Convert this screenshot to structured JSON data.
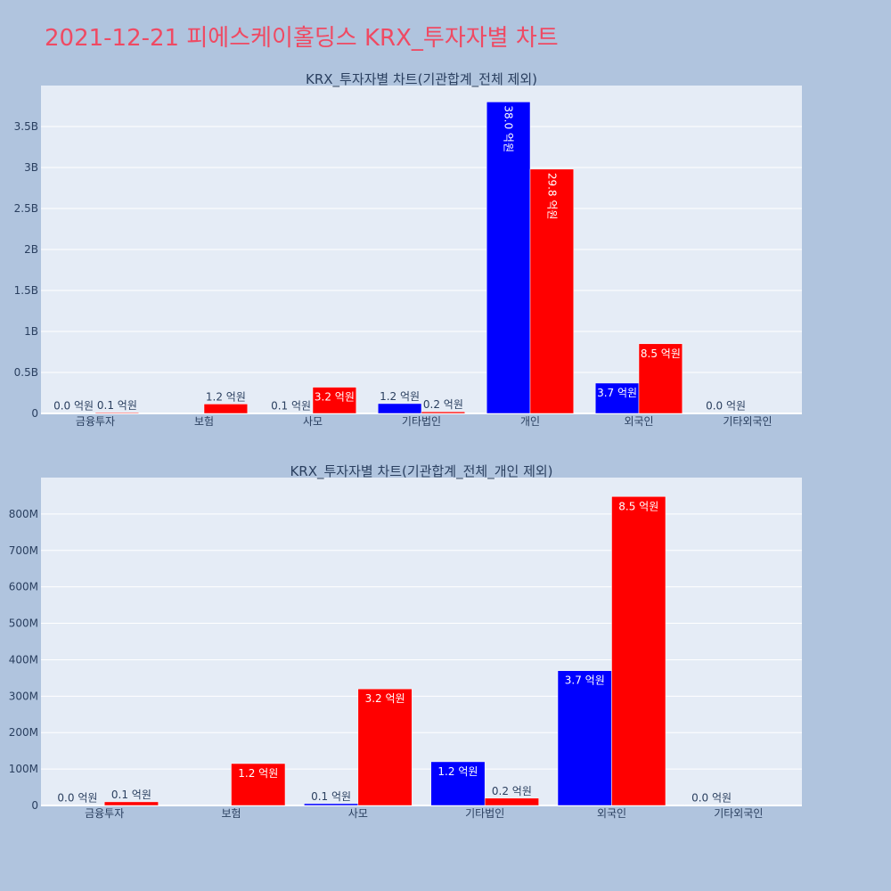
{
  "title": "2021-12-21 피에스케이홀딩스 KRX_투자자별 차트",
  "colors": {
    "buy": "#0000ff",
    "sell": "#ff0000",
    "plot_bg": "#e5ecf6",
    "page_bg": "#b0c4de",
    "title": "#ef4a63",
    "label_dark": "#2a3f5f",
    "label_light": "#ffffff"
  },
  "chart_data": [
    {
      "type": "bar",
      "title": "KRX_투자자별 차트(기관합계_전체 제외)",
      "categories": [
        "금융투자",
        "보험",
        "사모",
        "기타법인",
        "개인",
        "외국인",
        "기타외국인"
      ],
      "ylim": [
        0,
        4000000000
      ],
      "yticks": [
        {
          "value": 0,
          "label": "0"
        },
        {
          "value": 500000000,
          "label": "0.5B"
        },
        {
          "value": 1000000000,
          "label": "1B"
        },
        {
          "value": 1500000000,
          "label": "1.5B"
        },
        {
          "value": 2000000000,
          "label": "2B"
        },
        {
          "value": 2500000000,
          "label": "2.5B"
        },
        {
          "value": 3000000000,
          "label": "3B"
        },
        {
          "value": 3500000000,
          "label": "3.5B"
        }
      ],
      "grid": true,
      "series": [
        {
          "color": "#0000ff",
          "values": [
            1000000,
            null,
            5000000,
            120000000,
            3800000000,
            370000000,
            1000000
          ],
          "labels": [
            "0.0 억원",
            "",
            "0.1 억원",
            "1.2 억원",
            "38.0 억원",
            "3.7 억원",
            "0.0 억원"
          ]
        },
        {
          "color": "#ff0000",
          "values": [
            10000000,
            115000000,
            320000000,
            20000000,
            2980000000,
            850000000,
            null
          ],
          "labels": [
            "0.1 억원",
            "1.2 억원",
            "3.2 억원",
            "0.2 억원",
            "29.8 억원",
            "8.5 억원",
            ""
          ]
        }
      ]
    },
    {
      "type": "bar",
      "title": "KRX_투자자별 차트(기관합계_전체_개인 제외)",
      "categories": [
        "금융투자",
        "보험",
        "사모",
        "기타법인",
        "외국인",
        "기타외국인"
      ],
      "ylim": [
        0,
        900000000
      ],
      "yticks": [
        {
          "value": 0,
          "label": "0"
        },
        {
          "value": 100000000,
          "label": "100M"
        },
        {
          "value": 200000000,
          "label": "200M"
        },
        {
          "value": 300000000,
          "label": "300M"
        },
        {
          "value": 400000000,
          "label": "400M"
        },
        {
          "value": 500000000,
          "label": "500M"
        },
        {
          "value": 600000000,
          "label": "600M"
        },
        {
          "value": 700000000,
          "label": "700M"
        },
        {
          "value": 800000000,
          "label": "800M"
        }
      ],
      "grid": true,
      "series": [
        {
          "color": "#0000ff",
          "values": [
            1000000,
            null,
            5000000,
            120000000,
            370000000,
            1000000
          ],
          "labels": [
            "0.0 억원",
            "",
            "0.1 억원",
            "1.2 억원",
            "3.7 억원",
            "0.0 억원"
          ]
        },
        {
          "color": "#ff0000",
          "values": [
            10000000,
            115000000,
            320000000,
            20000000,
            848000000,
            null
          ],
          "labels": [
            "0.1 억원",
            "1.2 억원",
            "3.2 억원",
            "0.2 억원",
            "8.5 억원",
            ""
          ]
        }
      ]
    }
  ]
}
